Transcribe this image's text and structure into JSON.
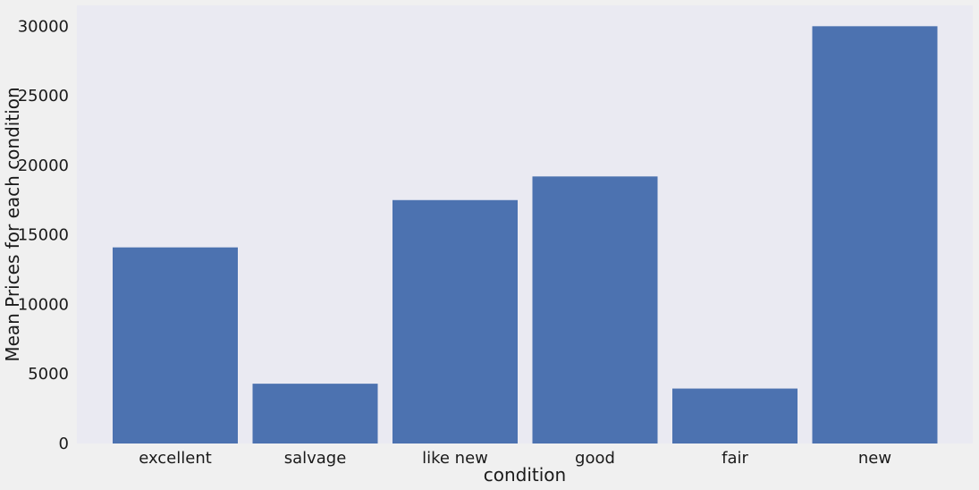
{
  "colors": {
    "page_background": "#f0f0f0",
    "plot_background": "#eaeaf2",
    "bar": "#4c72b0",
    "text": "#1a1a1a"
  },
  "chart_data": {
    "type": "bar",
    "categories": [
      "excellent",
      "salvage",
      "like new",
      "good",
      "fair",
      "new"
    ],
    "values": [
      14100,
      4300,
      17500,
      19200,
      3950,
      30000
    ],
    "title": "",
    "xlabel": "condition",
    "ylabel": "Mean Prices for each condition",
    "ylim": [
      0,
      31500
    ],
    "yticks": [
      0,
      5000,
      10000,
      15000,
      20000,
      25000,
      30000
    ],
    "grid": false,
    "legend": "none"
  }
}
